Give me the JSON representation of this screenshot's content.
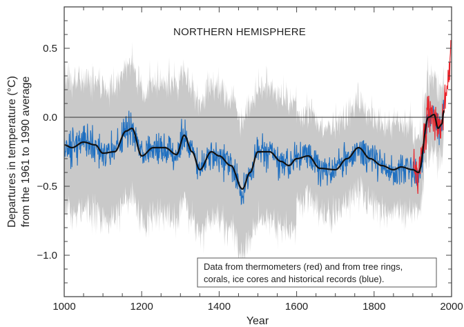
{
  "chart_data": {
    "type": "line",
    "title": "NORTHERN HEMISPHERE",
    "xlabel": "Year",
    "ylabel_line1": "Departures in temperature (°C)",
    "ylabel_line2": "from the 1961 to 1990 average",
    "xlim": [
      1000,
      2000
    ],
    "ylim": [
      -1.3,
      0.8
    ],
    "x_ticks": [
      "1000",
      "1200",
      "1400",
      "1600",
      "1800",
      "2000"
    ],
    "y_ticks": [
      "0.5",
      "0.0",
      "−0.5",
      "−1.0"
    ],
    "y_tick_values": [
      0.5,
      0.0,
      -0.5,
      -1.0
    ],
    "x_tick_values": [
      1000,
      1200,
      1400,
      1600,
      1800,
      2000
    ],
    "reference_line": 0.0,
    "grid": false,
    "annotation_line1": "Data from thermometers (red) and from tree rings,",
    "annotation_line2": "corals, ice cores and historical records (blue).",
    "colors": {
      "proxy": "#1f6fc0",
      "thermometer": "#e8242b",
      "smoothed": "#111111",
      "uncertainty": "#c9c9c9"
    },
    "series": [
      {
        "key": "smoothed",
        "x": [
          1000,
          1020,
          1050,
          1080,
          1100,
          1130,
          1160,
          1175,
          1200,
          1230,
          1260,
          1290,
          1310,
          1330,
          1350,
          1380,
          1400,
          1430,
          1460,
          1480,
          1500,
          1530,
          1560,
          1580,
          1600,
          1630,
          1660,
          1700,
          1730,
          1760,
          1790,
          1820,
          1850,
          1870,
          1900,
          1915,
          1940,
          1955,
          1965,
          1975,
          1980
        ],
        "y": [
          -0.2,
          -0.22,
          -0.18,
          -0.2,
          -0.26,
          -0.25,
          -0.1,
          -0.08,
          -0.28,
          -0.22,
          -0.22,
          -0.27,
          -0.13,
          -0.25,
          -0.38,
          -0.25,
          -0.28,
          -0.35,
          -0.52,
          -0.4,
          -0.25,
          -0.25,
          -0.32,
          -0.35,
          -0.3,
          -0.28,
          -0.37,
          -0.38,
          -0.3,
          -0.22,
          -0.3,
          -0.35,
          -0.38,
          -0.36,
          -0.38,
          -0.4,
          0.0,
          0.02,
          -0.08,
          -0.05,
          0.05
        ]
      },
      {
        "key": "thermometer",
        "x": [
          1902,
          1910,
          1920,
          1930,
          1940,
          1950,
          1960,
          1970,
          1980,
          1990,
          1995,
          1998
        ],
        "y": [
          -0.35,
          -0.45,
          -0.3,
          -0.15,
          0.05,
          0.0,
          -0.05,
          -0.1,
          0.05,
          0.25,
          0.35,
          0.58
        ]
      }
    ]
  }
}
